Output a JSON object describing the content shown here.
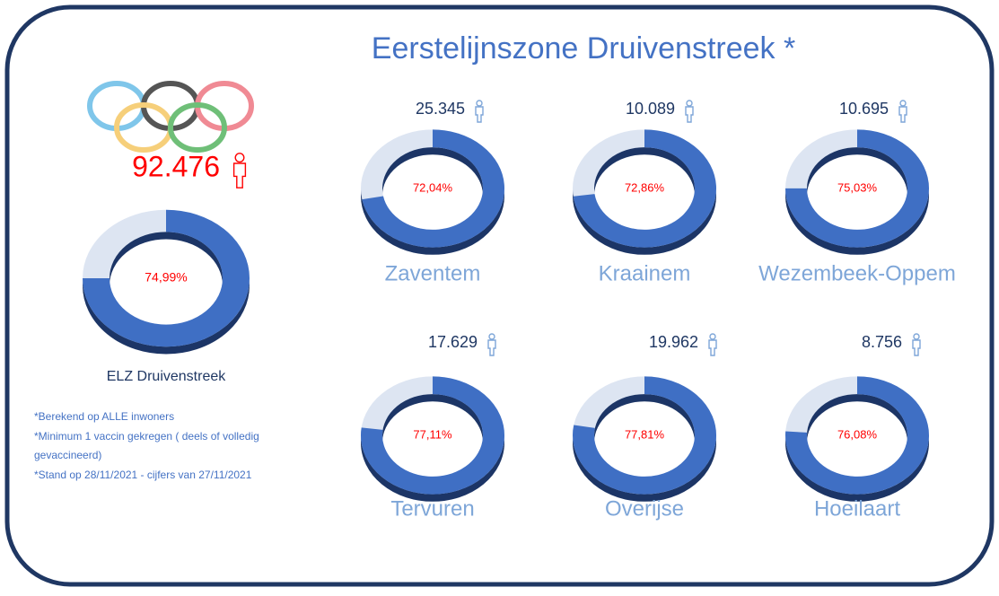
{
  "title": "Eerstelijnszone Druivenstreek *",
  "notes": [
    "*Berekend op ALLE inwoners",
    "*Minimum 1 vaccin gekregen ( deels of volledig",
    "gevaccineerd)",
    "*Stand op 28/11/2021 - cijfers van 27/11/2021"
  ],
  "chart_data": [
    {
      "type": "donut",
      "title": "ELZ Druivenstreek",
      "annotation": "92.476",
      "values": [
        74.99
      ],
      "value_labels": [
        "74,99%"
      ],
      "color": "#3f6fc4",
      "track_color": "#dde5f2"
    },
    {
      "type": "donut",
      "title": "Zaventem",
      "annotation": "25.345",
      "values": [
        72.04
      ],
      "value_labels": [
        "72,04%"
      ],
      "color": "#3f6fc4",
      "track_color": "#dde5f2"
    },
    {
      "type": "donut",
      "title": "Kraainem",
      "annotation": "10.089",
      "values": [
        72.86
      ],
      "value_labels": [
        "72,86%"
      ],
      "color": "#3f6fc4",
      "track_color": "#dde5f2"
    },
    {
      "type": "donut",
      "title": "Wezembeek-Oppem",
      "annotation": "10.695",
      "values": [
        75.03
      ],
      "value_labels": [
        "75,03%"
      ],
      "color": "#3f6fc4",
      "track_color": "#dde5f2"
    },
    {
      "type": "donut",
      "title": "Tervuren",
      "annotation": "17.629",
      "values": [
        77.11
      ],
      "value_labels": [
        "77,11%"
      ],
      "color": "#3f6fc4",
      "track_color": "#dde5f2"
    },
    {
      "type": "donut",
      "title": "Overijse",
      "annotation": "19.962",
      "values": [
        77.81
      ],
      "value_labels": [
        "77,81%"
      ],
      "color": "#3f6fc4",
      "track_color": "#dde5f2"
    },
    {
      "type": "donut",
      "title": "Hoeilaart",
      "annotation": "8.756",
      "values": [
        76.08
      ],
      "value_labels": [
        "76,08%"
      ],
      "color": "#3f6fc4",
      "track_color": "#dde5f2"
    }
  ]
}
